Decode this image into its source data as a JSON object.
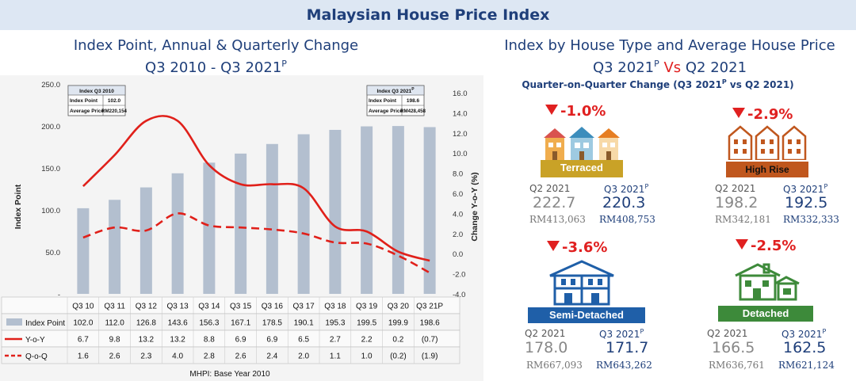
{
  "banner": "Malaysian House Price Index",
  "left_title": {
    "line1": "Index Point, Annual & Quarterly Change",
    "line2": "Q3 2010 -  Q3 2021",
    "sup": "P"
  },
  "right_title": {
    "line1": "Index by House Type and Average House Price",
    "line2a": "Q3 2021",
    "sup": "P",
    "vs": " Vs ",
    "line2b": "Q2 2021"
  },
  "subtitle": {
    "a": "Quarter-on-Quarter Change (Q3 2021",
    "sup": "P",
    "b": " vs Q2 2021)"
  },
  "colors": {
    "bar": "#b3bfcf",
    "line": "#e0201a",
    "navy": "#1f3f7a",
    "terraced": "#c9a227",
    "highrise": "#c0571e",
    "semi": "#1f5fa8",
    "detached": "#3d8a3a"
  },
  "chart_data": {
    "type": "bar+line",
    "categories": [
      "Q3 10",
      "Q3 11",
      "Q3 12",
      "Q3 13",
      "Q3 14",
      "Q3 15",
      "Q3 16",
      "Q3 17",
      "Q3 18",
      "Q3 19",
      "Q3 20",
      "Q3 21P"
    ],
    "series": [
      {
        "name": "Index Point",
        "type": "bar",
        "axis": "left",
        "values": [
          102.0,
          112.0,
          126.8,
          143.6,
          156.3,
          167.1,
          178.5,
          190.1,
          195.3,
          199.5,
          199.9,
          198.6
        ],
        "labels": [
          "102.0",
          "112.0",
          "126.8",
          "143.6",
          "156.3",
          "167.1",
          "178.5",
          "190.1",
          "195.3",
          "199.5",
          "199.9",
          "198.6"
        ]
      },
      {
        "name": "Y-o-Y",
        "type": "line",
        "axis": "right",
        "values": [
          6.7,
          9.8,
          13.2,
          13.2,
          8.8,
          6.9,
          6.9,
          6.5,
          2.7,
          2.2,
          0.2,
          -0.7
        ],
        "labels": [
          "6.7",
          "9.8",
          "13.2",
          "13.2",
          "8.8",
          "6.9",
          "6.9",
          "6.5",
          "2.7",
          "2.2",
          "0.2",
          "(0.7)"
        ]
      },
      {
        "name": "Q-o-Q",
        "type": "line-dashed",
        "axis": "right",
        "values": [
          1.6,
          2.6,
          2.3,
          4.0,
          2.8,
          2.6,
          2.4,
          2.0,
          1.1,
          1.0,
          -0.2,
          -1.9
        ],
        "labels": [
          "1.6",
          "2.6",
          "2.3",
          "4.0",
          "2.8",
          "2.6",
          "2.4",
          "2.0",
          "1.1",
          "1.0",
          "(0.2)",
          "(1.9)"
        ]
      }
    ],
    "ylabel_left": "Index Point",
    "ylabel_right": "Change Y-o-Y (%)",
    "yticks_left": [
      "250.0",
      "200.0",
      "150.0",
      "100.0",
      "50.0",
      "-"
    ],
    "yticks_right": [
      "16.0",
      "14.0",
      "12.0",
      "10.0",
      "8.0",
      "6.0",
      "4.0",
      "2.0",
      "0.0",
      "-2.0",
      "-4.0"
    ],
    "ylim_left": [
      0,
      250
    ],
    "ylim_right": [
      -4,
      16
    ],
    "footnote": "MHPI: Base Year 2010",
    "box_left": {
      "title": "Index Q3 2010",
      "r1k": "Index Point",
      "r1v": "102.0",
      "r2k": "Average Price",
      "r2v": "RM220,154"
    },
    "box_right": {
      "title": "Index Q3 2021",
      "sup": "P",
      "r1k": "Index Point",
      "r1v": "198.6",
      "r2k": "Average Price",
      "r2v": "RM428,458"
    }
  },
  "house_types": [
    {
      "name": "Terraced",
      "change": "-1.0%",
      "q2_label": "Q2 2021",
      "q3_label": "Q3 2021",
      "sup": "P",
      "q2_index": "222.7",
      "q3_index": "220.3",
      "q2_price": "RM413,063",
      "q3_price": "RM408,753"
    },
    {
      "name": "High Rise",
      "change": "-2.9%",
      "q2_label": "Q2 2021",
      "q3_label": "Q3 2021",
      "sup": "P",
      "q2_index": "198.2",
      "q3_index": "192.5",
      "q2_price": "RM342,181",
      "q3_price": "RM332,333"
    },
    {
      "name": "Semi-Detached",
      "change": "-3.6%",
      "q2_label": "Q2 2021",
      "q3_label": "Q3 2021",
      "sup": "P",
      "q2_index": "178.0",
      "q3_index": "171.7",
      "q2_price": "RM667,093",
      "q3_price": "RM643,262"
    },
    {
      "name": "Detached",
      "change": "-2.5%",
      "q2_label": "Q2 2021",
      "q3_label": "Q3 2021",
      "sup": "P",
      "q2_index": "166.5",
      "q3_index": "162.5",
      "q2_price": "RM636,761",
      "q3_price": "RM621,124"
    }
  ]
}
